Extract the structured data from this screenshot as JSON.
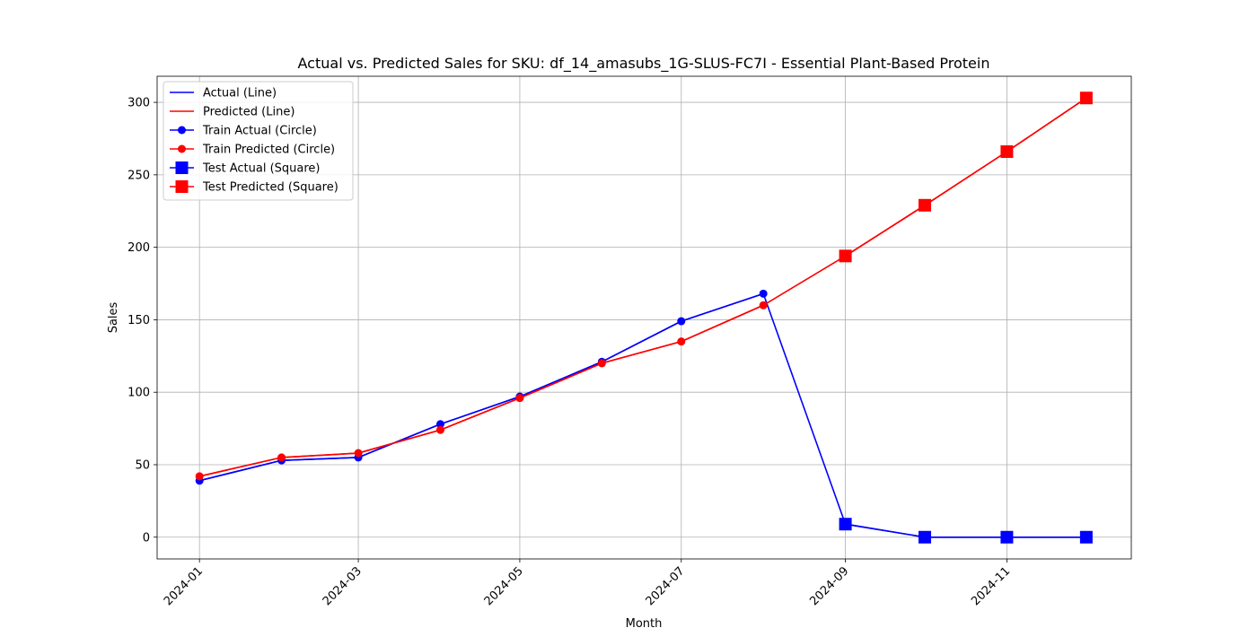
{
  "chart_data": {
    "type": "line",
    "title": "Actual vs. Predicted Sales for SKU: df_14_amasubs_1G-SLUS-FC7I - Essential Plant-Based Protein",
    "xlabel": "Month",
    "ylabel": "Sales",
    "xlim": [
      "2023-12-16",
      "2024-12-18"
    ],
    "ylim": [
      -15,
      318
    ],
    "x_ticks": [
      "2024-01",
      "2024-03",
      "2024-05",
      "2024-07",
      "2024-09",
      "2024-11"
    ],
    "y_ticks": [
      0,
      50,
      100,
      150,
      200,
      250,
      300
    ],
    "grid": true,
    "legend_position": "top-left",
    "x": [
      "2024-01-01",
      "2024-02-01",
      "2024-03-01",
      "2024-04-01",
      "2024-05-01",
      "2024-06-01",
      "2024-07-01",
      "2024-08-01",
      "2024-09-01",
      "2024-10-01",
      "2024-11-01",
      "2024-12-01"
    ],
    "series": [
      {
        "name": "Actual (Line)",
        "color": "#0000ff",
        "marker": "none",
        "values": [
          39,
          53,
          55,
          78,
          97,
          121,
          149,
          168,
          9,
          0,
          0,
          0
        ]
      },
      {
        "name": "Predicted (Line)",
        "color": "#ff0000",
        "marker": "none",
        "values": [
          42,
          55,
          58,
          74,
          96,
          120,
          135,
          160,
          194,
          229,
          266,
          303
        ]
      },
      {
        "name": "Train Actual (Circle)",
        "color": "#0000ff",
        "marker": "circle",
        "values": [
          39,
          53,
          55,
          78,
          97,
          121,
          149,
          168,
          null,
          null,
          null,
          null
        ]
      },
      {
        "name": "Train Predicted (Circle)",
        "color": "#ff0000",
        "marker": "circle",
        "values": [
          42,
          55,
          58,
          74,
          96,
          120,
          135,
          160,
          null,
          null,
          null,
          null
        ]
      },
      {
        "name": "Test Actual (Square)",
        "color": "#0000ff",
        "marker": "square",
        "values": [
          null,
          null,
          null,
          null,
          null,
          null,
          null,
          null,
          9,
          0,
          0,
          0
        ]
      },
      {
        "name": "Test Predicted (Square)",
        "color": "#ff0000",
        "marker": "square",
        "values": [
          null,
          null,
          null,
          null,
          null,
          null,
          null,
          null,
          194,
          229,
          266,
          303
        ]
      }
    ]
  }
}
